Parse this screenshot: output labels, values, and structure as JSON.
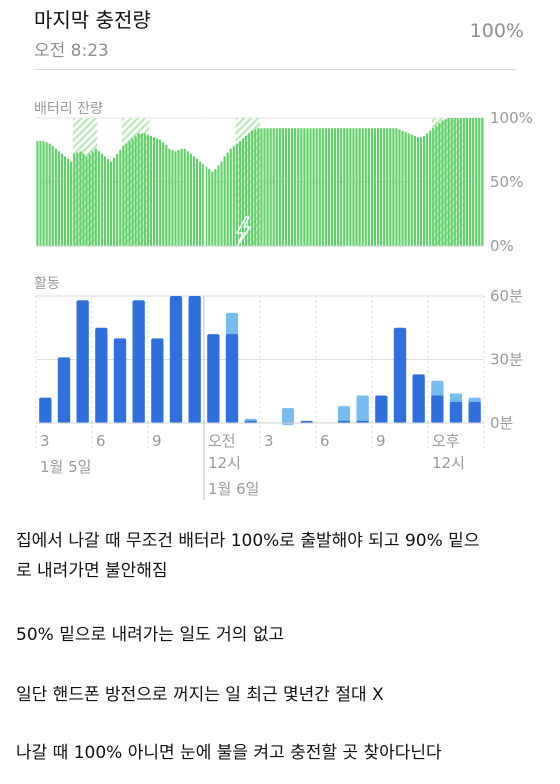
{
  "header": {
    "title": "마지막 충전량",
    "time": "오전 8:23",
    "level": "100%"
  },
  "battery": {
    "label": "배터리 잔량",
    "y_ticks": [
      "100%",
      "50%",
      "0%"
    ],
    "bar_color": "#5fd068",
    "stripe_color": "#b8eab9",
    "charging_icon": "lightning-bolt-icon",
    "levels": [
      82,
      82,
      82,
      81,
      80,
      78,
      76,
      74,
      72,
      70,
      68,
      66,
      72,
      73,
      74,
      72,
      70,
      72,
      74,
      76,
      74,
      72,
      70,
      68,
      66,
      69,
      72,
      75,
      78,
      80,
      82,
      84,
      86,
      88,
      88,
      88,
      87,
      86,
      85,
      84,
      83,
      81,
      79,
      76,
      75,
      74,
      75,
      76,
      76,
      74,
      72,
      70,
      68,
      66,
      64,
      62,
      60,
      58,
      60,
      63,
      66,
      70,
      73,
      76,
      78,
      80,
      82,
      84,
      86,
      88,
      90,
      91,
      92,
      92,
      92,
      92,
      92,
      92,
      92,
      92,
      92,
      92,
      92,
      92,
      92,
      92,
      92,
      92,
      92,
      92,
      92,
      92,
      92,
      92,
      92,
      92,
      92,
      92,
      92,
      92,
      92,
      92,
      92,
      92,
      92,
      92,
      92,
      92,
      92,
      92,
      92,
      92,
      92,
      92,
      92,
      92,
      92,
      92,
      91,
      90,
      89,
      88,
      87,
      86,
      85,
      85,
      86,
      88,
      90,
      92,
      94,
      96,
      98,
      99,
      100,
      100,
      100,
      100,
      100,
      100,
      100,
      100,
      100,
      100,
      100,
      100
    ],
    "charging_ranges": [
      [
        12,
        19
      ],
      [
        28,
        36
      ],
      [
        65,
        72
      ],
      [
        129,
        138
      ]
    ],
    "time_gap_after": 54
  },
  "activity": {
    "label": "활동",
    "y_ticks": [
      "60분",
      "30분",
      "0분"
    ],
    "screen_on_color": "#2f6fde",
    "screen_off_color": "#79bdf0",
    "on_minutes": [
      12,
      31,
      58,
      45,
      40,
      58,
      40,
      60,
      60,
      42,
      42,
      1,
      0,
      0,
      1,
      0,
      1,
      1,
      13,
      45,
      23,
      13,
      10,
      10
    ],
    "off_minutes": [
      0,
      0,
      0,
      0,
      0,
      0,
      0,
      0,
      0,
      0,
      10,
      1,
      0,
      7,
      0,
      0,
      7,
      12,
      0,
      0,
      0,
      7,
      4,
      2
    ],
    "x_ticks": [
      {
        "index": 0,
        "label": "3"
      },
      {
        "index": 3,
        "label": "6"
      },
      {
        "index": 6,
        "label": "9"
      },
      {
        "index": 9,
        "label": "오전"
      },
      {
        "index": 12,
        "label": "3"
      },
      {
        "index": 15,
        "label": "6"
      },
      {
        "index": 18,
        "label": "9"
      },
      {
        "index": 21,
        "label": "오후"
      }
    ],
    "x_sub": [
      {
        "index": 9,
        "label": "12시"
      },
      {
        "index": 21,
        "label": "12시"
      }
    ],
    "dates": [
      {
        "index": 0,
        "label": "1월 5일"
      },
      {
        "index": 9,
        "label": "1월 6일"
      }
    ],
    "day_boundary_index": 9
  },
  "post": {
    "lines": [
      "집에서 나갈 때 무조건 배터라 100%로 출발해야 되고 90% 밑으",
      "로 내려가면 불안해짐",
      "50% 밑으로 내려가는 일도 거의 없고",
      "일단 핸드폰 방전으로 꺼지는 일 최근 몇년간 절대 X",
      "나갈 때 100% 아니면 눈에 불을 켜고 충전할 곳 찾아다닌다"
    ]
  }
}
